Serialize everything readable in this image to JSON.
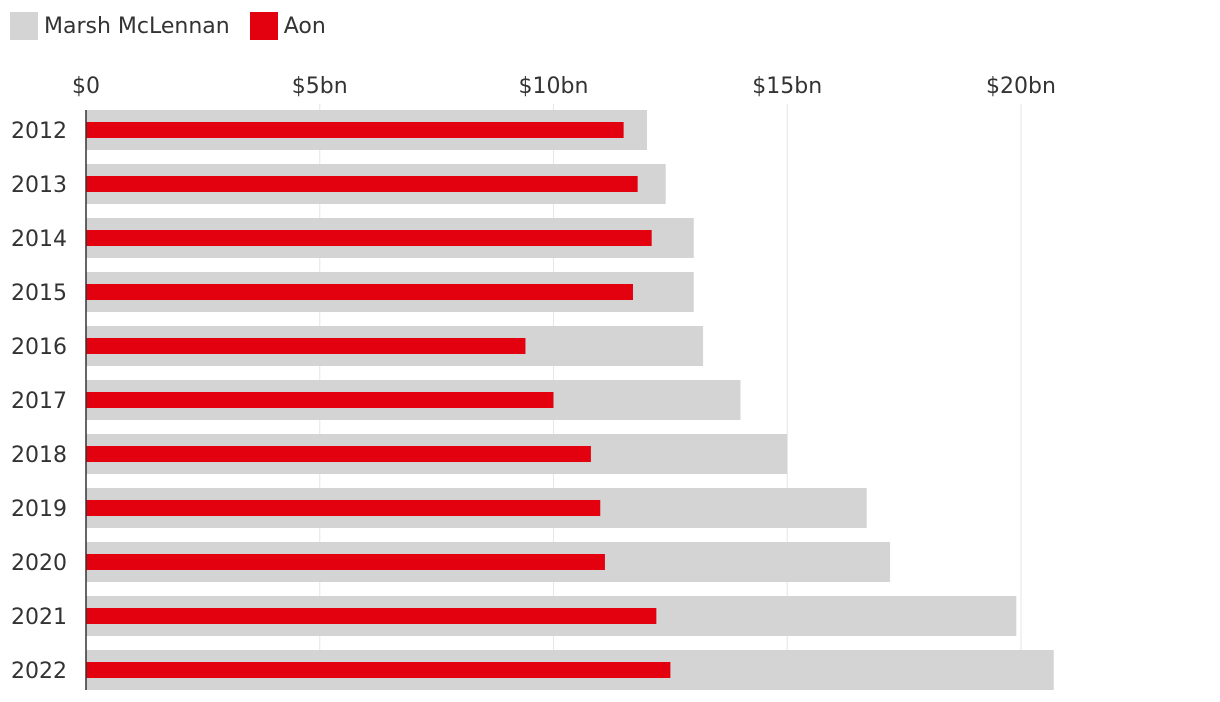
{
  "legend": {
    "items": [
      {
        "label": "Marsh McLennan",
        "color": "#d4d4d4"
      },
      {
        "label": "Aon",
        "color": "#e3000f"
      }
    ]
  },
  "chart_data": {
    "type": "bar",
    "orientation": "horizontal",
    "categories": [
      "2012",
      "2013",
      "2014",
      "2015",
      "2016",
      "2017",
      "2018",
      "2019",
      "2020",
      "2021",
      "2022"
    ],
    "series": [
      {
        "name": "Marsh McLennan",
        "color": "#d4d4d4",
        "values": [
          12.0,
          12.4,
          13.0,
          13.0,
          13.2,
          14.0,
          15.0,
          16.7,
          17.2,
          19.9,
          20.7
        ]
      },
      {
        "name": "Aon",
        "color": "#e3000f",
        "values": [
          11.5,
          11.8,
          12.1,
          11.7,
          9.4,
          10.0,
          10.8,
          11.0,
          11.1,
          12.2,
          12.5
        ]
      }
    ],
    "x_ticks": [
      "$0",
      "$5bn",
      "$10bn",
      "$15bn",
      "$20bn"
    ],
    "x_tick_values": [
      0,
      5,
      10,
      15,
      20
    ],
    "xlim": [
      0,
      20.7
    ],
    "grid": true,
    "legend_position": "top-left",
    "title": "",
    "xlabel": "",
    "ylabel": ""
  }
}
